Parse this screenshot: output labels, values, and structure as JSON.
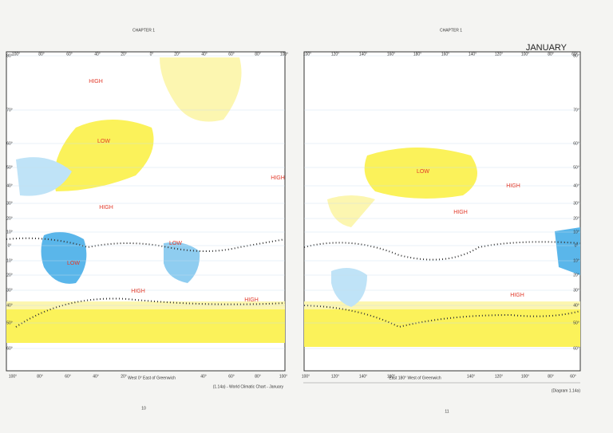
{
  "header": {
    "left_running_head": "CHAPTER 1",
    "right_running_head": "CHAPTER 1",
    "title": "JANUARY"
  },
  "left_map": {
    "top_longitudes": [
      "100°",
      "80°",
      "60°",
      "40°",
      "20°",
      "0°",
      "20°",
      "40°",
      "60°",
      "80°",
      "100°"
    ],
    "bottom_longitudes": [
      "100°",
      "80°",
      "60°",
      "40°",
      "20°",
      "40°",
      "60°",
      "80°",
      "100°"
    ],
    "meridian_note": "West 0° East of Greenwich",
    "latitudes": [
      "80°",
      "70°",
      "60°",
      "50°",
      "40°",
      "30°",
      "20°",
      "10°",
      "0°",
      "10°",
      "20°",
      "30°",
      "40°",
      "50°",
      "60°"
    ],
    "pressure_labels": [
      "HIGH",
      "LOW",
      "HIGH",
      "HIGH",
      "LOW",
      "LOW",
      "HIGH",
      "HIGH"
    ],
    "caption": "(1.14a) - World Climatic Chart - January",
    "page_number": "10"
  },
  "right_map": {
    "top_longitudes": [
      "100°",
      "120°",
      "140°",
      "160°",
      "180°",
      "160°",
      "140°",
      "120°",
      "100°",
      "80°",
      "60°"
    ],
    "bottom_longitudes": [
      "100°",
      "120°",
      "140°",
      "160°",
      "140°",
      "120°",
      "100°",
      "80°",
      "60°"
    ],
    "meridian_note": "East 180° West of Greenwich",
    "latitudes": [
      "80°",
      "70°",
      "60°",
      "50°",
      "40°",
      "30°",
      "20°",
      "10°",
      "0°",
      "10°",
      "20°",
      "30°",
      "40°",
      "50°",
      "60°"
    ],
    "pressure_labels": [
      "LOW",
      "HIGH",
      "HIGH",
      "HIGH"
    ],
    "caption": "(Diagram 1.14a)",
    "page_number": "11"
  }
}
